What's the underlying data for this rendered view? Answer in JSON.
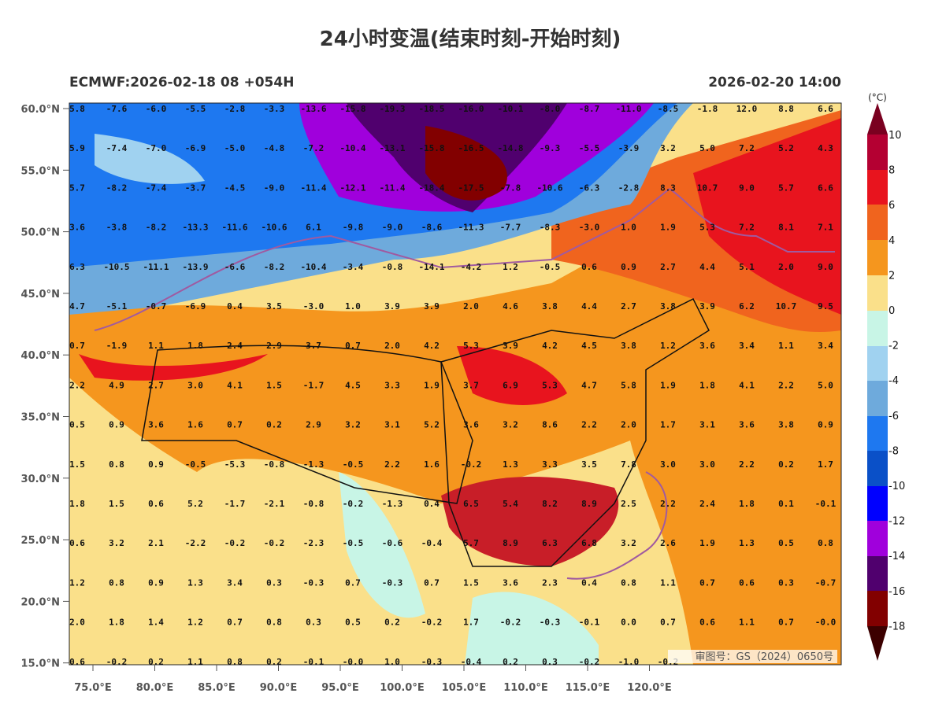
{
  "title": "24小时变温(结束时刻-开始时刻)",
  "subtitle_left": "ECMWF:2026-02-18 08 +054H",
  "subtitle_right": "2026-02-20 14:00",
  "y_axis_labels": [
    "60.0°N",
    "55.0°N",
    "50.0°N",
    "45.0°N",
    "40.0°N",
    "35.0°N",
    "30.0°N",
    "25.0°N",
    "20.0°N",
    "15.0°N"
  ],
  "x_axis_labels": [
    "75.0°E",
    "80.0°E",
    "85.0°E",
    "90.0°E",
    "95.0°E",
    "100.0°E",
    "105.0°E",
    "110.0°E",
    "115.0°E",
    "120.0°E"
  ],
  "colorbar": {
    "unit": "(°C)",
    "labels": [
      10,
      8,
      6,
      4,
      2,
      0,
      -2,
      -4,
      -6,
      -8,
      -10,
      -12,
      -14,
      -16,
      -18
    ]
  },
  "grid_values": [
    [
      "5.8",
      "-7.6",
      "-6.0",
      "-5.5",
      "-2.8",
      "-3.3",
      "-13.6",
      "-15.8",
      "-19.3",
      "-18.5",
      "-16.0",
      "-10.1",
      "-8.0",
      "-8.7",
      "-11.0",
      "-8.5",
      "-1.8",
      "12.0",
      "8.8",
      "6.6"
    ],
    [
      "5.9",
      "-7.4",
      "-7.0",
      "-6.9",
      "-5.0",
      "-4.8",
      "-7.2",
      "-10.4",
      "-13.1",
      "-15.8",
      "-16.5",
      "-14.8",
      "-9.3",
      "-5.5",
      "-3.9",
      "3.2",
      "5.0",
      "7.2",
      "5.2",
      "4.3"
    ],
    [
      "5.7",
      "-8.2",
      "-7.4",
      "-3.7",
      "-4.5",
      "-9.0",
      "-11.4",
      "-12.1",
      "-11.4",
      "-18.4",
      "-17.5",
      "-7.8",
      "-10.6",
      "-6.3",
      "-2.8",
      "8.3",
      "10.7",
      "9.0",
      "5.7",
      "6.6"
    ],
    [
      "3.6",
      "-3.8",
      "-8.2",
      "-13.3",
      "-11.6",
      "-10.6",
      "6.1",
      "-9.8",
      "-9.0",
      "-8.6",
      "-11.3",
      "-7.7",
      "-8.3",
      "-3.0",
      "1.0",
      "1.9",
      "5.3",
      "7.2",
      "8.1",
      "7.1"
    ],
    [
      "6.3",
      "-10.5",
      "-11.1",
      "-13.9",
      "-6.6",
      "-8.2",
      "-10.4",
      "-3.4",
      "-0.8",
      "-14.1",
      "-4.2",
      "1.2",
      "-0.5",
      "0.6",
      "0.9",
      "2.7",
      "4.4",
      "5.1",
      "2.0",
      "9.0"
    ],
    [
      "4.7",
      "-5.1",
      "-0.7",
      "-6.9",
      "0.4",
      "3.5",
      "-3.0",
      "1.0",
      "3.9",
      "3.9",
      "2.0",
      "4.6",
      "3.8",
      "4.4",
      "2.7",
      "3.8",
      "3.9",
      "6.2",
      "10.7",
      "9.5"
    ],
    [
      "0.7",
      "-1.9",
      "1.1",
      "1.8",
      "2.4",
      "2.9",
      "3.7",
      "0.7",
      "2.0",
      "4.2",
      "5.3",
      "3.9",
      "4.2",
      "4.5",
      "3.8",
      "1.2",
      "3.6",
      "3.4",
      "1.1",
      "3.4"
    ],
    [
      "2.2",
      "4.9",
      "2.7",
      "3.0",
      "4.1",
      "1.5",
      "-1.7",
      "4.5",
      "3.3",
      "1.9",
      "3.7",
      "6.9",
      "5.3",
      "4.7",
      "5.8",
      "1.9",
      "1.8",
      "4.1",
      "2.2",
      "5.0"
    ],
    [
      "0.5",
      "0.9",
      "3.6",
      "1.6",
      "0.7",
      "0.2",
      "2.9",
      "3.2",
      "3.1",
      "5.2",
      "3.6",
      "3.2",
      "8.6",
      "2.2",
      "2.0",
      "1.7",
      "3.1",
      "3.6",
      "3.8",
      "0.9"
    ],
    [
      "1.5",
      "0.8",
      "0.9",
      "-0.5",
      "-5.3",
      "-0.8",
      "-1.3",
      "-0.5",
      "2.2",
      "1.6",
      "-0.2",
      "1.3",
      "3.3",
      "3.5",
      "7.8",
      "3.0",
      "3.0",
      "2.2",
      "0.2",
      "1.7"
    ],
    [
      "1.8",
      "1.5",
      "0.6",
      "5.2",
      "-1.7",
      "-2.1",
      "-0.8",
      "-0.2",
      "-1.3",
      "0.4",
      "6.5",
      "5.4",
      "8.2",
      "8.9",
      "2.5",
      "2.2",
      "2.4",
      "1.8",
      "0.1",
      "-0.1"
    ],
    [
      "0.6",
      "3.2",
      "2.1",
      "-2.2",
      "-0.2",
      "-0.2",
      "-2.3",
      "-0.5",
      "-0.6",
      "-0.4",
      "5.7",
      "8.9",
      "6.3",
      "6.8",
      "3.2",
      "2.6",
      "1.9",
      "1.3",
      "0.5",
      "0.8"
    ],
    [
      "1.2",
      "0.8",
      "0.9",
      "1.3",
      "3.4",
      "0.3",
      "-0.3",
      "0.7",
      "-0.3",
      "0.7",
      "1.5",
      "3.6",
      "2.3",
      "0.4",
      "0.8",
      "1.1",
      "0.7",
      "0.6",
      "0.3",
      "-0.7"
    ],
    [
      "2.0",
      "1.8",
      "1.4",
      "1.2",
      "0.7",
      "0.8",
      "0.3",
      "0.5",
      "0.2",
      "-0.2",
      "1.7",
      "-0.2",
      "-0.3",
      "-0.1",
      "0.0",
      "0.7",
      "0.6",
      "1.1",
      "0.7",
      "-0.0"
    ],
    [
      "0.6",
      "-0.2",
      "0.2",
      "1.1",
      "0.8",
      "0.2",
      "-0.1",
      "-0.0",
      "1.0",
      "-0.3",
      "-0.4",
      "0.2",
      "0.3",
      "-0.2",
      "-1.0",
      "-0.2"
    ]
  ],
  "watermark": "审图号：GS（2024）0650号"
}
